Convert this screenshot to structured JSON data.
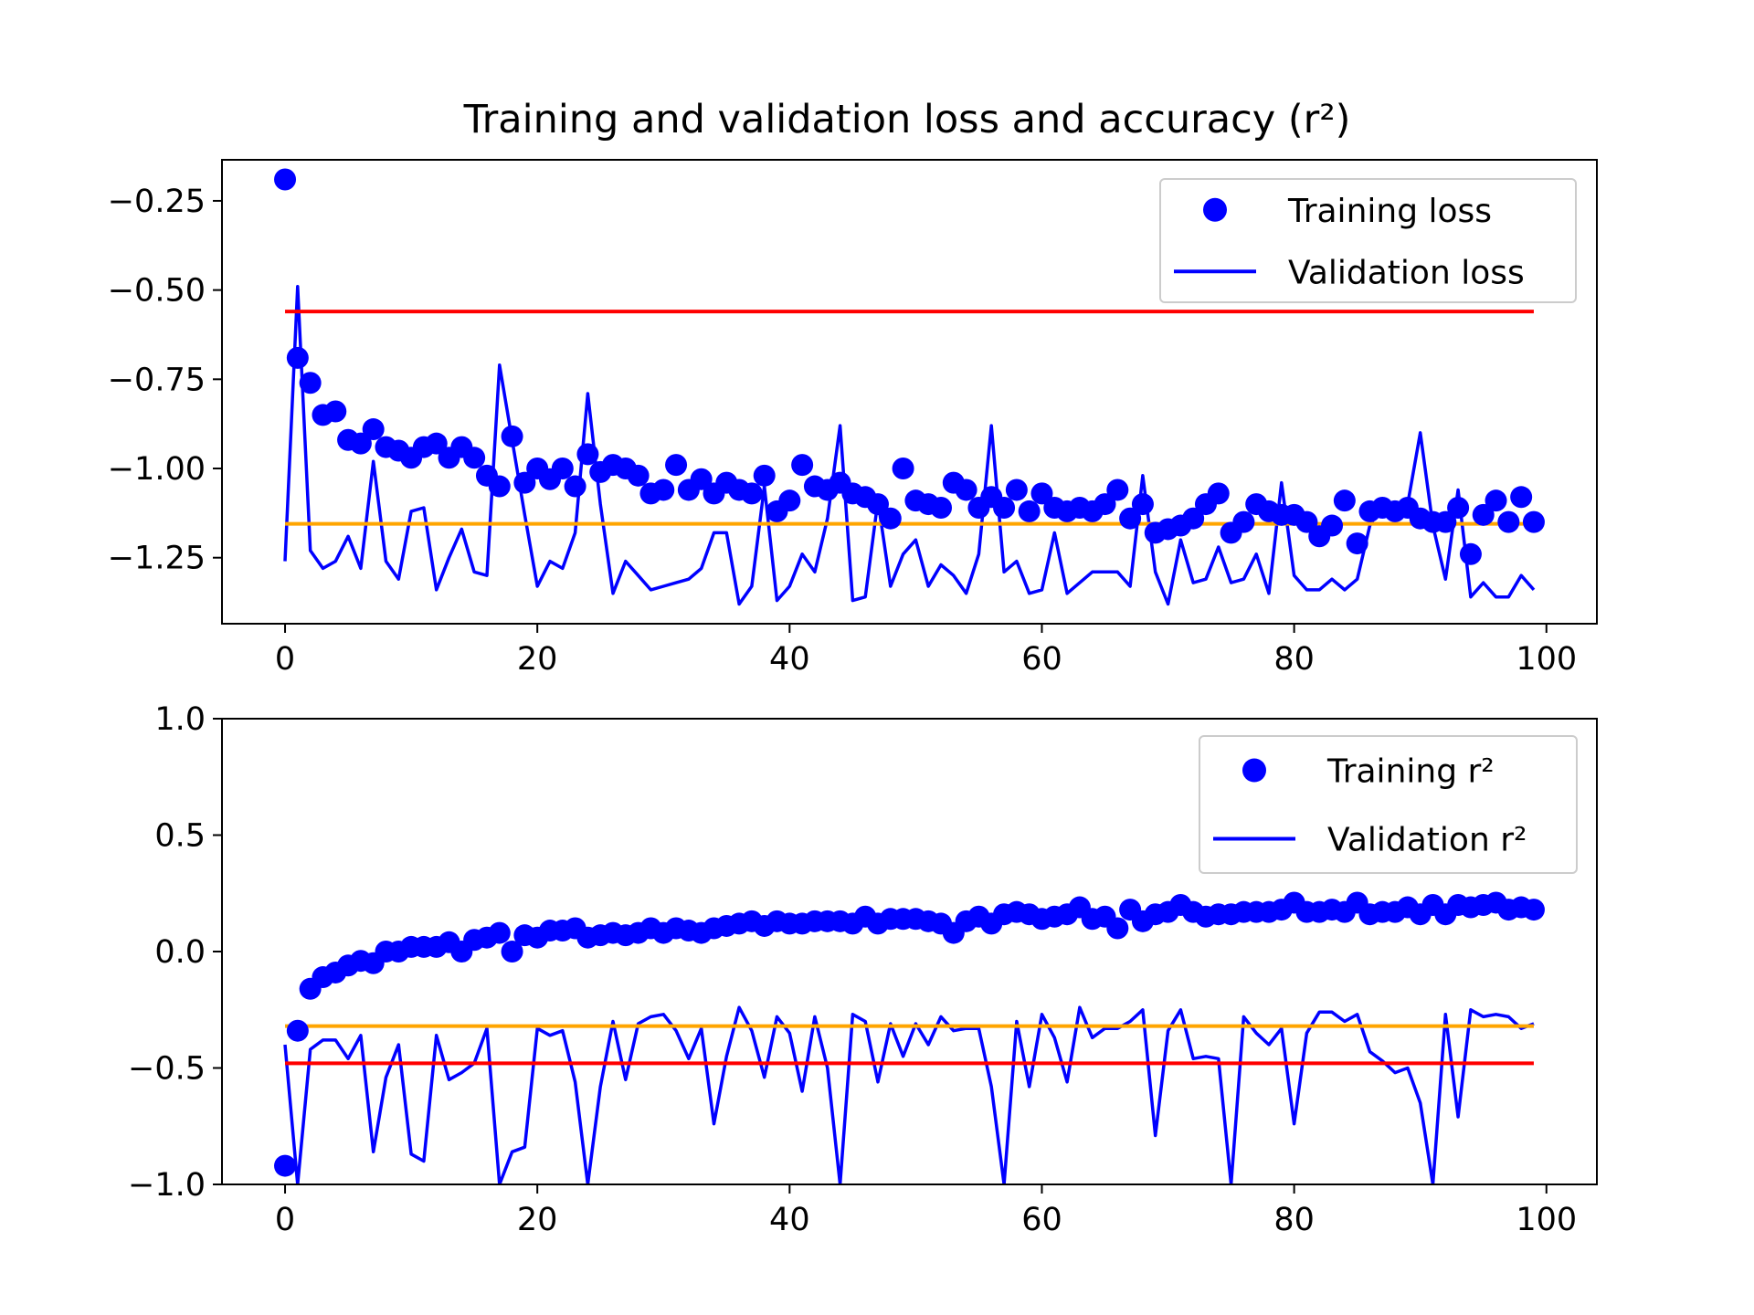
{
  "chart_data": [
    {
      "type": "scatter+line",
      "title": "Training and validation loss and accuracy (r²)",
      "xlim": [
        -5,
        104
      ],
      "ylim": [
        -1.435,
        -0.135
      ],
      "x_ticks": [
        0,
        20,
        40,
        60,
        80,
        100
      ],
      "x_tick_labels": [
        "0",
        "20",
        "40",
        "60",
        "80",
        "100"
      ],
      "y_ticks": [
        -0.25,
        -0.5,
        -0.75,
        -1.0,
        -1.25
      ],
      "y_tick_labels": [
        "−0.25",
        "−0.50",
        "−0.75",
        "−1.00",
        "−1.25"
      ],
      "legend_position": "top-right",
      "legend": [
        {
          "name": "Training loss",
          "marker": "dot"
        },
        {
          "name": "Validation loss",
          "marker": "line"
        }
      ],
      "series": [
        {
          "name": "Training loss",
          "style": "dots",
          "color": "#0000ff",
          "x": [
            0,
            1,
            2,
            3,
            4,
            5,
            6,
            7,
            8,
            9,
            10,
            11,
            12,
            13,
            14,
            15,
            16,
            17,
            18,
            19,
            20,
            21,
            22,
            23,
            24,
            25,
            26,
            27,
            28,
            29,
            30,
            31,
            32,
            33,
            34,
            35,
            36,
            37,
            38,
            39,
            40,
            41,
            42,
            43,
            44,
            45,
            46,
            47,
            48,
            49,
            50,
            51,
            52,
            53,
            54,
            55,
            56,
            57,
            58,
            59,
            60,
            61,
            62,
            63,
            64,
            65,
            66,
            67,
            68,
            69,
            70,
            71,
            72,
            73,
            74,
            75,
            76,
            77,
            78,
            79,
            80,
            81,
            82,
            83,
            84,
            85,
            86,
            87,
            88,
            89,
            90,
            91,
            92,
            93,
            94,
            95,
            96,
            97,
            98,
            99
          ],
          "values": [
            -0.19,
            -0.69,
            -0.76,
            -0.85,
            -0.84,
            -0.92,
            -0.93,
            -0.89,
            -0.94,
            -0.95,
            -0.97,
            -0.94,
            -0.93,
            -0.97,
            -0.94,
            -0.97,
            -1.02,
            -1.05,
            -0.91,
            -1.04,
            -1.0,
            -1.03,
            -1.0,
            -1.05,
            -0.96,
            -1.01,
            -0.99,
            -1.0,
            -1.02,
            -1.07,
            -1.06,
            -0.99,
            -1.06,
            -1.03,
            -1.07,
            -1.04,
            -1.06,
            -1.07,
            -1.02,
            -1.12,
            -1.09,
            -0.99,
            -1.05,
            -1.06,
            -1.04,
            -1.07,
            -1.08,
            -1.1,
            -1.14,
            -1.0,
            -1.09,
            -1.1,
            -1.11,
            -1.04,
            -1.06,
            -1.11,
            -1.08,
            -1.11,
            -1.06,
            -1.12,
            -1.07,
            -1.11,
            -1.12,
            -1.11,
            -1.12,
            -1.1,
            -1.06,
            -1.14,
            -1.1,
            -1.18,
            -1.17,
            -1.16,
            -1.14,
            -1.1,
            -1.07,
            -1.18,
            -1.15,
            -1.1,
            -1.12,
            -1.13,
            -1.13,
            -1.15,
            -1.19,
            -1.16,
            -1.09,
            -1.21,
            -1.12,
            -1.11,
            -1.12,
            -1.11,
            -1.14,
            -1.15,
            -1.15,
            -1.11,
            -1.24,
            -1.13,
            -1.09,
            -1.15,
            -1.08,
            -1.15
          ]
        },
        {
          "name": "Validation loss",
          "style": "line",
          "color": "#0000ff",
          "x": [
            0,
            1,
            2,
            3,
            4,
            5,
            6,
            7,
            8,
            9,
            10,
            11,
            12,
            13,
            14,
            15,
            16,
            17,
            18,
            19,
            20,
            21,
            22,
            23,
            24,
            25,
            26,
            27,
            28,
            29,
            30,
            31,
            32,
            33,
            34,
            35,
            36,
            37,
            38,
            39,
            40,
            41,
            42,
            43,
            44,
            45,
            46,
            47,
            48,
            49,
            50,
            51,
            52,
            53,
            54,
            55,
            56,
            57,
            58,
            59,
            60,
            61,
            62,
            63,
            64,
            65,
            66,
            67,
            68,
            69,
            70,
            71,
            72,
            73,
            74,
            75,
            76,
            77,
            78,
            79,
            80,
            81,
            82,
            83,
            84,
            85,
            86,
            87,
            88,
            89,
            90,
            91,
            92,
            93,
            94,
            95,
            96,
            97,
            98,
            99
          ],
          "values": [
            -1.26,
            -0.49,
            -1.23,
            -1.28,
            -1.26,
            -1.19,
            -1.28,
            -0.98,
            -1.26,
            -1.31,
            -1.12,
            -1.11,
            -1.34,
            -1.25,
            -1.17,
            -1.29,
            -1.3,
            -0.71,
            -0.92,
            -1.13,
            -1.33,
            -1.26,
            -1.28,
            -1.18,
            -0.79,
            -1.1,
            -1.35,
            -1.26,
            -1.3,
            -1.34,
            -1.33,
            -1.32,
            -1.31,
            -1.28,
            -1.18,
            -1.18,
            -1.38,
            -1.33,
            -1.05,
            -1.37,
            -1.33,
            -1.24,
            -1.29,
            -1.14,
            -0.88,
            -1.37,
            -1.36,
            -1.09,
            -1.33,
            -1.24,
            -1.2,
            -1.33,
            -1.27,
            -1.3,
            -1.35,
            -1.24,
            -0.88,
            -1.29,
            -1.26,
            -1.35,
            -1.34,
            -1.18,
            -1.35,
            -1.32,
            -1.29,
            -1.29,
            -1.29,
            -1.33,
            -1.02,
            -1.29,
            -1.38,
            -1.2,
            -1.32,
            -1.31,
            -1.22,
            -1.32,
            -1.31,
            -1.24,
            -1.35,
            -1.04,
            -1.3,
            -1.34,
            -1.34,
            -1.31,
            -1.34,
            -1.31,
            -1.16,
            -1.1,
            -1.13,
            -1.1,
            -0.9,
            -1.16,
            -1.31,
            -1.06,
            -1.36,
            -1.32,
            -1.36,
            -1.36,
            -1.3,
            -1.34
          ]
        },
        {
          "name": "",
          "style": "hline",
          "color": "#ff0000",
          "value": -0.56,
          "x_range": [
            0,
            99
          ]
        },
        {
          "name": "",
          "style": "hline",
          "color": "#ffa500",
          "value": -1.155,
          "x_range": [
            0,
            99
          ]
        }
      ]
    },
    {
      "type": "scatter+line",
      "title": "",
      "xlim": [
        -5,
        104
      ],
      "ylim": [
        -1.0,
        1.0
      ],
      "x_ticks": [
        0,
        20,
        40,
        60,
        80,
        100
      ],
      "x_tick_labels": [
        "0",
        "20",
        "40",
        "60",
        "80",
        "100"
      ],
      "y_ticks": [
        1.0,
        0.5,
        0.0,
        -0.5,
        -1.0
      ],
      "y_tick_labels": [
        "1.0",
        "0.5",
        "0.0",
        "−0.5",
        "−1.0"
      ],
      "legend_position": "top-right",
      "legend": [
        {
          "name": "Training r²",
          "marker": "dot"
        },
        {
          "name": "Validation r²",
          "marker": "line"
        }
      ],
      "series": [
        {
          "name": "Training r²",
          "style": "dots",
          "color": "#0000ff",
          "x": [
            0,
            1,
            2,
            3,
            4,
            5,
            6,
            7,
            8,
            9,
            10,
            11,
            12,
            13,
            14,
            15,
            16,
            17,
            18,
            19,
            20,
            21,
            22,
            23,
            24,
            25,
            26,
            27,
            28,
            29,
            30,
            31,
            32,
            33,
            34,
            35,
            36,
            37,
            38,
            39,
            40,
            41,
            42,
            43,
            44,
            45,
            46,
            47,
            48,
            49,
            50,
            51,
            52,
            53,
            54,
            55,
            56,
            57,
            58,
            59,
            60,
            61,
            62,
            63,
            64,
            65,
            66,
            67,
            68,
            69,
            70,
            71,
            72,
            73,
            74,
            75,
            76,
            77,
            78,
            79,
            80,
            81,
            82,
            83,
            84,
            85,
            86,
            87,
            88,
            89,
            90,
            91,
            92,
            93,
            94,
            95,
            96,
            97,
            98,
            99
          ],
          "values": [
            -0.92,
            -0.34,
            -0.16,
            -0.11,
            -0.09,
            -0.06,
            -0.04,
            -0.05,
            0.0,
            0.0,
            0.02,
            0.02,
            0.02,
            0.04,
            0.0,
            0.05,
            0.06,
            0.08,
            0.0,
            0.07,
            0.06,
            0.09,
            0.09,
            0.1,
            0.06,
            0.07,
            0.08,
            0.07,
            0.08,
            0.1,
            0.08,
            0.1,
            0.09,
            0.08,
            0.1,
            0.11,
            0.12,
            0.13,
            0.11,
            0.13,
            0.12,
            0.12,
            0.13,
            0.13,
            0.13,
            0.12,
            0.15,
            0.12,
            0.14,
            0.14,
            0.14,
            0.13,
            0.12,
            0.08,
            0.13,
            0.15,
            0.12,
            0.16,
            0.17,
            0.16,
            0.14,
            0.15,
            0.16,
            0.19,
            0.14,
            0.15,
            0.1,
            0.18,
            0.13,
            0.16,
            0.17,
            0.2,
            0.17,
            0.15,
            0.16,
            0.16,
            0.17,
            0.17,
            0.17,
            0.18,
            0.21,
            0.17,
            0.17,
            0.18,
            0.17,
            0.21,
            0.16,
            0.17,
            0.17,
            0.19,
            0.16,
            0.2,
            0.16,
            0.2,
            0.19,
            0.2,
            0.21,
            0.18,
            0.19,
            0.18
          ]
        },
        {
          "name": "Validation r²",
          "style": "line",
          "color": "#0000ff",
          "x": [
            0,
            1,
            2,
            3,
            4,
            5,
            6,
            7,
            8,
            9,
            10,
            11,
            12,
            13,
            14,
            15,
            16,
            17,
            18,
            19,
            20,
            21,
            22,
            23,
            24,
            25,
            26,
            27,
            28,
            29,
            30,
            31,
            32,
            33,
            34,
            35,
            36,
            37,
            38,
            39,
            40,
            41,
            42,
            43,
            44,
            45,
            46,
            47,
            48,
            49,
            50,
            51,
            52,
            53,
            54,
            55,
            56,
            57,
            58,
            59,
            60,
            61,
            62,
            63,
            64,
            65,
            66,
            67,
            68,
            69,
            70,
            71,
            72,
            73,
            74,
            75,
            76,
            77,
            78,
            79,
            80,
            81,
            82,
            83,
            84,
            85,
            86,
            87,
            88,
            89,
            90,
            91,
            92,
            93,
            94,
            95,
            96,
            97,
            98,
            99
          ],
          "values": [
            -0.4,
            -1.0,
            -0.42,
            -0.38,
            -0.38,
            -0.46,
            -0.36,
            -0.86,
            -0.54,
            -0.4,
            -0.87,
            -0.9,
            -0.36,
            -0.55,
            -0.52,
            -0.48,
            -0.33,
            -1.0,
            -0.86,
            -0.84,
            -0.33,
            -0.36,
            -0.34,
            -0.56,
            -1.0,
            -0.58,
            -0.3,
            -0.55,
            -0.31,
            -0.28,
            -0.27,
            -0.34,
            -0.46,
            -0.33,
            -0.74,
            -0.45,
            -0.24,
            -0.34,
            -0.54,
            -0.28,
            -0.35,
            -0.6,
            -0.28,
            -0.5,
            -1.0,
            -0.27,
            -0.3,
            -0.56,
            -0.31,
            -0.45,
            -0.31,
            -0.4,
            -0.28,
            -0.34,
            -0.33,
            -0.33,
            -0.58,
            -1.0,
            -0.3,
            -0.58,
            -0.27,
            -0.37,
            -0.56,
            -0.24,
            -0.37,
            -0.33,
            -0.33,
            -0.3,
            -0.25,
            -0.79,
            -0.34,
            -0.25,
            -0.46,
            -0.45,
            -0.46,
            -1.0,
            -0.28,
            -0.35,
            -0.4,
            -0.33,
            -0.74,
            -0.35,
            -0.26,
            -0.26,
            -0.3,
            -0.27,
            -0.43,
            -0.47,
            -0.52,
            -0.5,
            -0.65,
            -1.0,
            -0.27,
            -0.71,
            -0.25,
            -0.28,
            -0.27,
            -0.28,
            -0.33,
            -0.31
          ]
        },
        {
          "name": "",
          "style": "hline",
          "color": "#ff0000",
          "value": -0.48,
          "x_range": [
            0,
            99
          ]
        },
        {
          "name": "",
          "style": "hline",
          "color": "#ffa500",
          "value": -0.32,
          "x_range": [
            0,
            99
          ]
        }
      ]
    }
  ]
}
